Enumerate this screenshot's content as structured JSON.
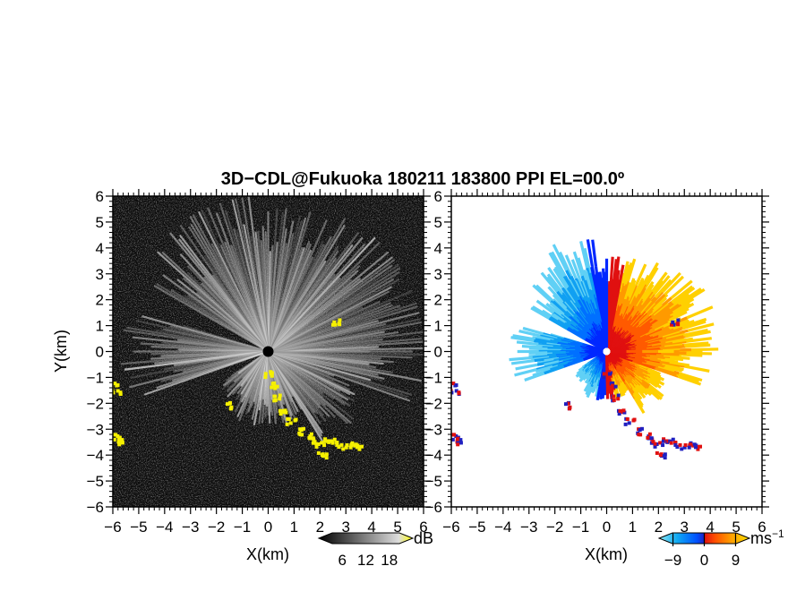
{
  "title": "3D−CDL@Fukuoka 180211 183800 PPI EL=00.0º",
  "chart_data": [
    {
      "type": "heatmap",
      "field": "reflectivity",
      "xlabel": "X(km)",
      "ylabel": "Y(km)",
      "xlim": [
        -6,
        6
      ],
      "ylim": [
        -6,
        6
      ],
      "x_ticks": [
        "−6",
        "−5",
        "−4",
        "−3",
        "−2",
        "−1",
        "0",
        "1",
        "2",
        "3",
        "4",
        "5",
        "6"
      ],
      "y_ticks": [
        "6",
        "5",
        "4",
        "3",
        "2",
        "1",
        "0",
        "−1",
        "−2",
        "−3",
        "−4",
        "−5",
        "−6"
      ],
      "colorbar": {
        "unit": "dB",
        "ticks": [
          {
            "value": 6,
            "label": "6"
          },
          {
            "value": 12,
            "label": "12"
          },
          {
            "value": 18,
            "label": "18"
          }
        ],
        "range": [
          0,
          24
        ],
        "colors": [
          "#000000",
          "#ffffff",
          "#ffff00"
        ]
      },
      "echo_color": "#f5f000",
      "background_color": "#0d0d0d"
    },
    {
      "type": "heatmap",
      "field": "doppler_velocity",
      "xlabel": "X(km)",
      "xlim": [
        -6,
        6
      ],
      "ylim": [
        -6,
        6
      ],
      "x_ticks": [
        "−6",
        "−5",
        "−4",
        "−3",
        "−2",
        "−1",
        "0",
        "1",
        "2",
        "3",
        "4",
        "5",
        "6"
      ],
      "y_ticks": [
        "6",
        "5",
        "4",
        "3",
        "2",
        "1",
        "0",
        "−1",
        "−2",
        "−3",
        "−4",
        "−5",
        "−6"
      ],
      "colorbar": {
        "unit": "ms",
        "unit_exponent": "−1",
        "ticks": [
          {
            "value": -9,
            "label": "−9"
          },
          {
            "value": 0,
            "label": "0"
          },
          {
            "value": 9,
            "label": "9"
          }
        ],
        "range": [
          -13,
          13
        ],
        "colors": [
          "#8fe9f5",
          "#10aaf2",
          "#0050ff",
          "#2020c0",
          "#e01010",
          "#ff5000",
          "#ffa000",
          "#ffe000"
        ]
      },
      "negative_colors": [
        "#0028ff",
        "#0070ff",
        "#10a0f2",
        "#60d0f5"
      ],
      "positive_colors": [
        "#e01010",
        "#ff5a00",
        "#ff9a00",
        "#ffd000"
      ]
    }
  ]
}
